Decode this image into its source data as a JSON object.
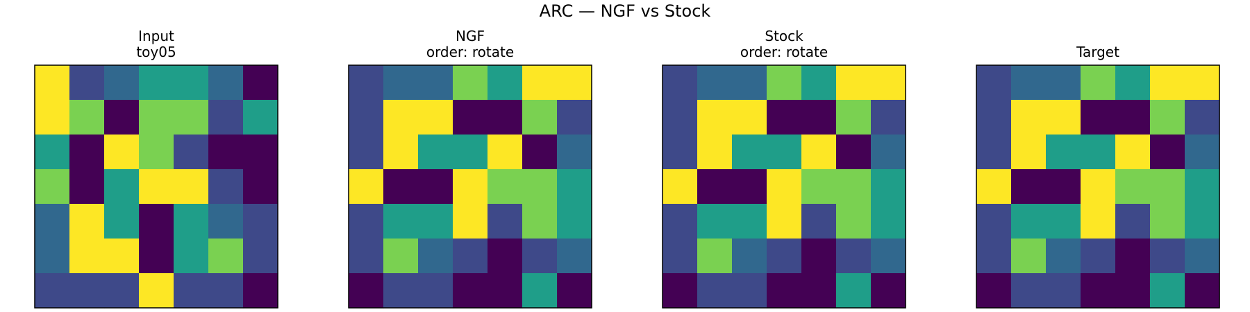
{
  "figure": {
    "title": "ARC — NGF vs Stock"
  },
  "palette": {
    "0": "#440154",
    "1": "#3e4989",
    "2": "#31688e",
    "3": "#1f9e89",
    "4": "#7ad151",
    "5": "#fde725"
  },
  "chart_data": [
    {
      "type": "heatmap",
      "title": "Input",
      "subtitle": "toy05",
      "rows": 7,
      "cols": 7,
      "values": [
        [
          5,
          1,
          2,
          3,
          3,
          2,
          0
        ],
        [
          5,
          4,
          0,
          4,
          4,
          1,
          3
        ],
        [
          3,
          0,
          5,
          4,
          1,
          0,
          0
        ],
        [
          4,
          0,
          3,
          5,
          5,
          1,
          0
        ],
        [
          2,
          5,
          3,
          0,
          3,
          2,
          1
        ],
        [
          2,
          5,
          5,
          0,
          3,
          4,
          1
        ],
        [
          1,
          1,
          1,
          5,
          1,
          1,
          0
        ]
      ]
    },
    {
      "type": "heatmap",
      "title": "NGF",
      "subtitle": "order: rotate",
      "rows": 7,
      "cols": 7,
      "values": [
        [
          1,
          2,
          2,
          4,
          3,
          5,
          5
        ],
        [
          1,
          5,
          5,
          0,
          0,
          4,
          1
        ],
        [
          1,
          5,
          3,
          3,
          5,
          0,
          2
        ],
        [
          5,
          0,
          0,
          5,
          4,
          4,
          3
        ],
        [
          1,
          3,
          3,
          5,
          1,
          4,
          3
        ],
        [
          1,
          4,
          2,
          1,
          0,
          1,
          2
        ],
        [
          0,
          1,
          1,
          0,
          0,
          3,
          0
        ]
      ]
    },
    {
      "type": "heatmap",
      "title": "Stock",
      "subtitle": "order: rotate",
      "rows": 7,
      "cols": 7,
      "values": [
        [
          1,
          2,
          2,
          4,
          3,
          5,
          5
        ],
        [
          1,
          5,
          5,
          0,
          0,
          4,
          1
        ],
        [
          1,
          5,
          3,
          3,
          5,
          0,
          2
        ],
        [
          5,
          0,
          0,
          5,
          4,
          4,
          3
        ],
        [
          1,
          3,
          3,
          5,
          1,
          4,
          3
        ],
        [
          1,
          4,
          2,
          1,
          0,
          1,
          2
        ],
        [
          0,
          1,
          1,
          0,
          0,
          3,
          0
        ]
      ]
    },
    {
      "type": "heatmap",
      "title": "Target",
      "subtitle": "",
      "rows": 7,
      "cols": 7,
      "values": [
        [
          1,
          2,
          2,
          4,
          3,
          5,
          5
        ],
        [
          1,
          5,
          5,
          0,
          0,
          4,
          1
        ],
        [
          1,
          5,
          3,
          3,
          5,
          0,
          2
        ],
        [
          5,
          0,
          0,
          5,
          4,
          4,
          3
        ],
        [
          1,
          3,
          3,
          5,
          1,
          4,
          3
        ],
        [
          1,
          4,
          2,
          1,
          0,
          1,
          2
        ],
        [
          0,
          1,
          1,
          0,
          0,
          3,
          0
        ]
      ]
    }
  ]
}
